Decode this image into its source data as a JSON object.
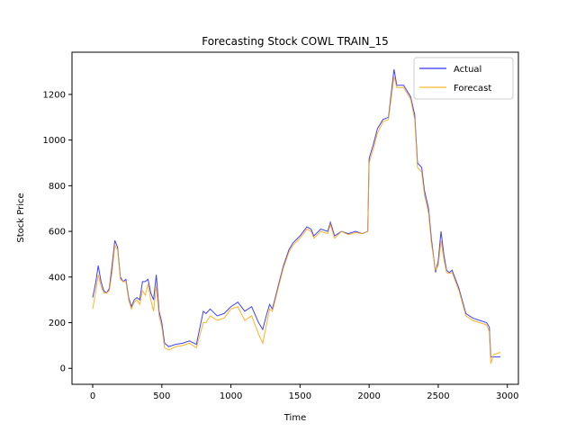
{
  "chart_data": {
    "type": "line",
    "title": "Forecasting Stock COWL TRAIN_15",
    "xlabel": "Time",
    "ylabel": "Stock Price",
    "xlim": [
      -150,
      3080
    ],
    "ylim": [
      -70,
      1385
    ],
    "xticks": [
      0,
      500,
      1000,
      1500,
      2000,
      2500,
      3000
    ],
    "yticks": [
      0,
      200,
      400,
      600,
      800,
      1000,
      1200
    ],
    "grid": false,
    "legend_position": "top-right",
    "series": [
      {
        "name": "Actual",
        "color": "#0000ff",
        "x": [
          0,
          20,
          40,
          60,
          80,
          100,
          120,
          140,
          160,
          180,
          200,
          220,
          240,
          260,
          280,
          300,
          320,
          340,
          360,
          380,
          400,
          420,
          440,
          460,
          480,
          500,
          520,
          550,
          600,
          650,
          700,
          750,
          800,
          820,
          850,
          900,
          950,
          1000,
          1050,
          1100,
          1150,
          1200,
          1230,
          1260,
          1280,
          1300,
          1350,
          1380,
          1420,
          1450,
          1500,
          1550,
          1580,
          1600,
          1650,
          1700,
          1720,
          1750,
          1800,
          1850,
          1900,
          1950,
          1990,
          2000,
          2030,
          2060,
          2100,
          2140,
          2180,
          2200,
          2250,
          2300,
          2330,
          2350,
          2380,
          2400,
          2430,
          2450,
          2480,
          2500,
          2520,
          2540,
          2560,
          2580,
          2600,
          2650,
          2700,
          2750,
          2800,
          2850,
          2870,
          2880,
          2900,
          2950
        ],
        "y": [
          310,
          370,
          450,
          380,
          340,
          330,
          350,
          450,
          560,
          530,
          400,
          380,
          390,
          310,
          270,
          300,
          310,
          300,
          380,
          380,
          390,
          330,
          300,
          410,
          250,
          200,
          110,
          95,
          105,
          110,
          120,
          105,
          250,
          240,
          260,
          230,
          240,
          270,
          290,
          250,
          270,
          200,
          170,
          240,
          280,
          260,
          380,
          450,
          520,
          550,
          580,
          620,
          610,
          580,
          610,
          600,
          640,
          580,
          600,
          590,
          600,
          590,
          600,
          920,
          980,
          1050,
          1090,
          1100,
          1310,
          1240,
          1240,
          1190,
          1110,
          900,
          880,
          780,
          700,
          570,
          420,
          470,
          600,
          500,
          430,
          420,
          430,
          350,
          240,
          220,
          210,
          200,
          180,
          50,
          50,
          50
        ]
      },
      {
        "name": "Forecast",
        "color": "#ffa500",
        "x": [
          0,
          20,
          40,
          60,
          80,
          100,
          120,
          140,
          160,
          180,
          200,
          220,
          240,
          260,
          280,
          300,
          320,
          340,
          360,
          380,
          400,
          420,
          440,
          460,
          480,
          500,
          520,
          550,
          600,
          650,
          700,
          750,
          800,
          820,
          850,
          900,
          950,
          1000,
          1050,
          1100,
          1150,
          1200,
          1230,
          1260,
          1280,
          1300,
          1350,
          1380,
          1420,
          1450,
          1500,
          1550,
          1580,
          1600,
          1650,
          1700,
          1720,
          1750,
          1800,
          1850,
          1900,
          1950,
          1990,
          2000,
          2030,
          2060,
          2100,
          2140,
          2180,
          2200,
          2250,
          2300,
          2330,
          2350,
          2380,
          2400,
          2430,
          2450,
          2480,
          2500,
          2520,
          2540,
          2560,
          2580,
          2600,
          2650,
          2700,
          2750,
          2800,
          2850,
          2870,
          2880,
          2900,
          2950
        ],
        "y": [
          260,
          330,
          410,
          360,
          330,
          330,
          340,
          420,
          540,
          520,
          390,
          380,
          380,
          300,
          260,
          290,
          300,
          280,
          340,
          320,
          370,
          300,
          250,
          360,
          230,
          180,
          90,
          80,
          95,
          100,
          110,
          90,
          200,
          200,
          230,
          210,
          220,
          260,
          270,
          210,
          230,
          150,
          110,
          200,
          260,
          250,
          370,
          440,
          510,
          540,
          570,
          610,
          600,
          570,
          600,
          590,
          630,
          570,
          600,
          585,
          595,
          590,
          600,
          900,
          960,
          1030,
          1080,
          1090,
          1280,
          1230,
          1230,
          1180,
          1090,
          880,
          860,
          760,
          680,
          550,
          430,
          450,
          560,
          480,
          420,
          415,
          420,
          340,
          230,
          210,
          200,
          190,
          160,
          20,
          60,
          70
        ]
      }
    ]
  }
}
